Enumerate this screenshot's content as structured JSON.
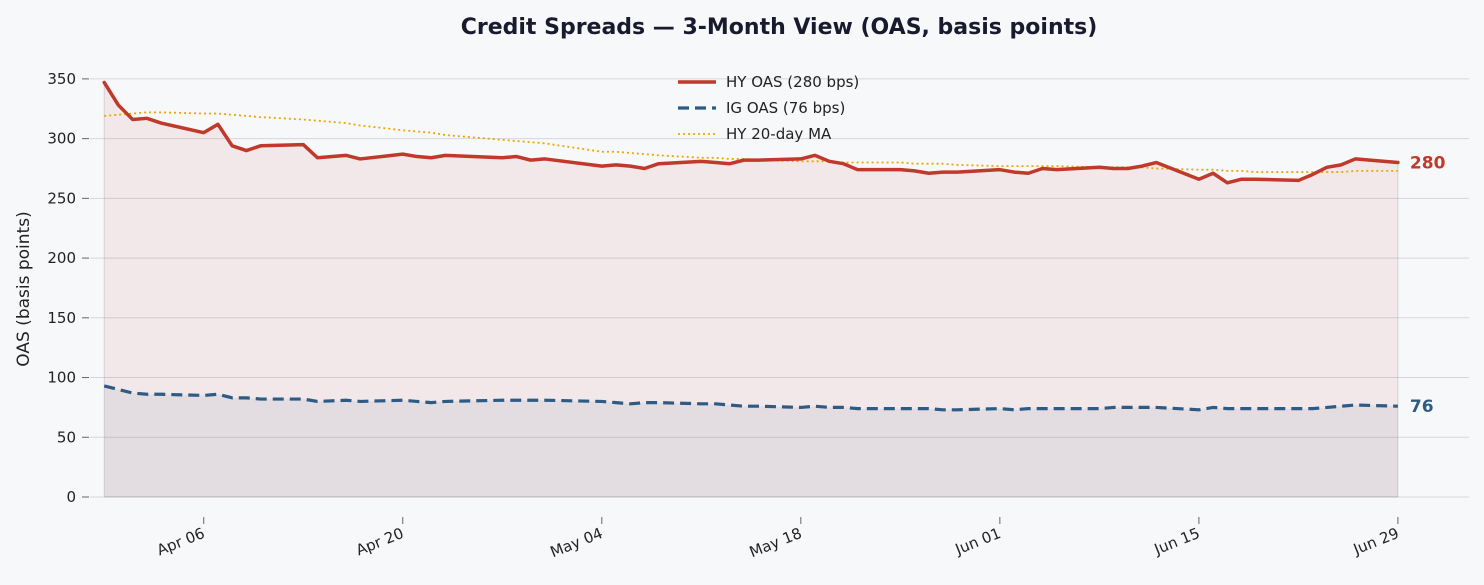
{
  "chart_data": {
    "type": "line",
    "title": "Credit Spreads — 3-Month View (OAS, basis points)",
    "xlabel": "",
    "ylabel": "OAS (basis points)",
    "ylim": [
      0,
      370
    ],
    "yticks": [
      0,
      50,
      100,
      150,
      200,
      250,
      300,
      350
    ],
    "x_range": [
      "2024-03-29",
      "2024-07-04"
    ],
    "xticks": [
      {
        "date": "2024-04-06",
        "label": "Apr 06"
      },
      {
        "date": "2024-04-20",
        "label": "Apr 20"
      },
      {
        "date": "2024-05-04",
        "label": "May 04"
      },
      {
        "date": "2024-05-18",
        "label": "May 18"
      },
      {
        "date": "2024-06-01",
        "label": "Jun 01"
      },
      {
        "date": "2024-06-15",
        "label": "Jun 15"
      },
      {
        "date": "2024-06-29",
        "label": "Jun 29"
      }
    ],
    "grid": "horizontal",
    "legend_position": "top-center",
    "x": [
      "2024-03-30",
      "2024-03-31",
      "2024-04-01",
      "2024-04-02",
      "2024-04-03",
      "2024-04-06",
      "2024-04-07",
      "2024-04-08",
      "2024-04-09",
      "2024-04-10",
      "2024-04-13",
      "2024-04-14",
      "2024-04-16",
      "2024-04-17",
      "2024-04-20",
      "2024-04-21",
      "2024-04-22",
      "2024-04-23",
      "2024-04-27",
      "2024-04-28",
      "2024-04-29",
      "2024-04-30",
      "2024-05-04",
      "2024-05-05",
      "2024-05-06",
      "2024-05-07",
      "2024-05-08",
      "2024-05-11",
      "2024-05-12",
      "2024-05-13",
      "2024-05-14",
      "2024-05-15",
      "2024-05-18",
      "2024-05-19",
      "2024-05-20",
      "2024-05-21",
      "2024-05-22",
      "2024-05-25",
      "2024-05-26",
      "2024-05-27",
      "2024-05-28",
      "2024-05-29",
      "2024-06-01",
      "2024-06-02",
      "2024-06-03",
      "2024-06-04",
      "2024-06-05",
      "2024-06-08",
      "2024-06-09",
      "2024-06-10",
      "2024-06-11",
      "2024-06-12",
      "2024-06-15",
      "2024-06-16",
      "2024-06-17",
      "2024-06-18",
      "2024-06-19",
      "2024-06-22",
      "2024-06-23",
      "2024-06-24",
      "2024-06-25",
      "2024-06-26",
      "2024-06-29"
    ],
    "series": [
      {
        "name": "HY OAS  (280 bps)",
        "color": "#c0392b",
        "style": "solid",
        "end_label": "280",
        "values": [
          347,
          328,
          316,
          317,
          313,
          305,
          312,
          294,
          290,
          294,
          295,
          284,
          286,
          283,
          287,
          285,
          284,
          286,
          284,
          285,
          282,
          283,
          277,
          278,
          277,
          275,
          279,
          281,
          280,
          279,
          282,
          282,
          283,
          286,
          281,
          279,
          274,
          274,
          273,
          271,
          272,
          272,
          274,
          272,
          271,
          275,
          274,
          276,
          275,
          275,
          277,
          280,
          266,
          271,
          263,
          266,
          266,
          265,
          270,
          276,
          278,
          283,
          280
        ]
      },
      {
        "name": "IG OAS  (76 bps)",
        "color": "#2e5b84",
        "style": "dashed",
        "end_label": "76",
        "values": [
          93,
          90,
          87,
          86,
          86,
          85,
          86,
          83,
          83,
          82,
          82,
          80,
          81,
          80,
          81,
          80,
          79,
          80,
          81,
          81,
          81,
          81,
          80,
          79,
          78,
          79,
          79,
          78,
          78,
          77,
          76,
          76,
          75,
          76,
          75,
          75,
          74,
          74,
          74,
          74,
          73,
          73,
          74,
          73,
          74,
          74,
          74,
          74,
          75,
          75,
          75,
          75,
          73,
          75,
          74,
          74,
          74,
          74,
          74,
          75,
          76,
          77,
          76
        ]
      },
      {
        "name": "HY 20-day MA",
        "color": "#f0a500",
        "style": "dotted",
        "values": [
          319,
          320,
          321,
          322,
          322,
          321,
          321,
          320,
          319,
          318,
          316,
          315,
          313,
          311,
          307,
          306,
          305,
          303,
          299,
          298,
          297,
          296,
          289,
          289,
          288,
          287,
          286,
          284,
          284,
          283,
          283,
          282,
          281,
          281,
          281,
          280,
          280,
          280,
          279,
          279,
          279,
          278,
          277,
          277,
          277,
          277,
          277,
          276,
          276,
          276,
          276,
          275,
          274,
          274,
          273,
          273,
          272,
          272,
          272,
          272,
          272,
          273,
          273
        ]
      }
    ]
  }
}
